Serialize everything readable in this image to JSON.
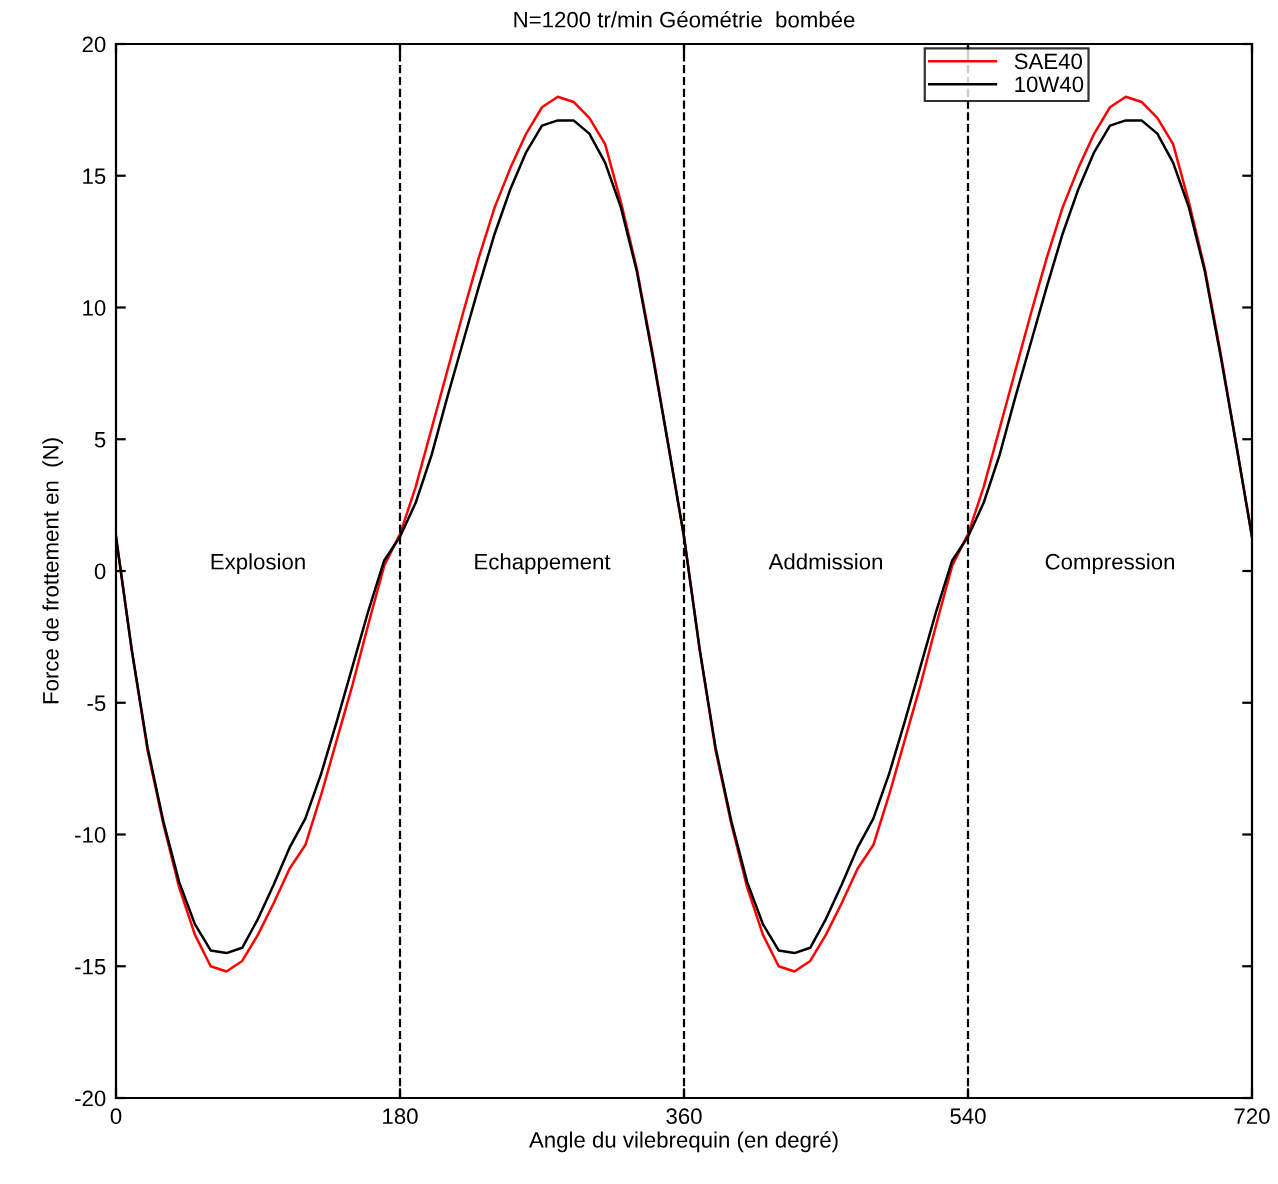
{
  "chart_data": {
    "type": "line",
    "title": "N=1200 tr/min Géométrie  bombée",
    "xlabel": "Angle du vilebrequin (en degré)",
    "ylabel": "Force de frottement en  (N)",
    "x": [
      0,
      10,
      20,
      30,
      40,
      50,
      60,
      70,
      80,
      90,
      100,
      110,
      120,
      130,
      140,
      150,
      160,
      170,
      180,
      190,
      200,
      210,
      220,
      230,
      240,
      250,
      260,
      270,
      280,
      290,
      300,
      310,
      320,
      330,
      340,
      350,
      360,
      370,
      380,
      390,
      400,
      410,
      420,
      430,
      440,
      450,
      460,
      470,
      480,
      490,
      500,
      510,
      520,
      530,
      540,
      550,
      560,
      570,
      580,
      590,
      600,
      610,
      620,
      630,
      640,
      650,
      660,
      670,
      680,
      690,
      700,
      710,
      720
    ],
    "series": [
      {
        "name": "SAE40",
        "color": "#ff0000",
        "values": [
          1.3,
          -3.0,
          -6.8,
          -9.6,
          -12.0,
          -13.8,
          -15.0,
          -15.2,
          -14.8,
          -13.8,
          -12.6,
          -11.3,
          -10.4,
          -8.5,
          -6.4,
          -4.3,
          -2.0,
          0.2,
          1.4,
          3.2,
          5.4,
          7.6,
          9.8,
          11.9,
          13.8,
          15.3,
          16.6,
          17.6,
          18.0,
          17.8,
          17.2,
          16.2,
          14.0,
          11.5,
          8.3,
          4.8,
          1.3,
          -3.0,
          -6.8,
          -9.6,
          -12.0,
          -13.8,
          -15.0,
          -15.2,
          -14.8,
          -13.8,
          -12.6,
          -11.3,
          -10.4,
          -8.5,
          -6.4,
          -4.3,
          -2.0,
          0.2,
          1.4,
          3.2,
          5.4,
          7.6,
          9.8,
          11.9,
          13.8,
          15.3,
          16.6,
          17.6,
          18.0,
          17.8,
          17.2,
          16.2,
          14.0,
          11.5,
          8.3,
          4.8,
          1.3
        ]
      },
      {
        "name": "10W40",
        "color": "#000000",
        "values": [
          1.3,
          -3.0,
          -6.7,
          -9.5,
          -11.8,
          -13.4,
          -14.4,
          -14.5,
          -14.3,
          -13.2,
          -11.9,
          -10.5,
          -9.4,
          -7.7,
          -5.7,
          -3.6,
          -1.5,
          0.4,
          1.3,
          2.6,
          4.4,
          6.6,
          8.7,
          10.8,
          12.8,
          14.5,
          15.9,
          16.9,
          17.1,
          17.1,
          16.6,
          15.5,
          13.8,
          11.4,
          8.2,
          4.8,
          1.3,
          -3.0,
          -6.7,
          -9.5,
          -11.8,
          -13.4,
          -14.4,
          -14.5,
          -14.3,
          -13.2,
          -11.9,
          -10.5,
          -9.4,
          -7.7,
          -5.7,
          -3.6,
          -1.5,
          0.4,
          1.3,
          2.6,
          4.4,
          6.6,
          8.7,
          10.8,
          12.8,
          14.5,
          15.9,
          16.9,
          17.1,
          17.1,
          16.6,
          15.5,
          13.8,
          11.4,
          8.2,
          4.8,
          1.3
        ]
      }
    ],
    "xlim": [
      0,
      720
    ],
    "xticks": [
      0,
      180,
      360,
      540,
      720
    ],
    "ylim": [
      -20,
      20
    ],
    "yticks": [
      -20,
      -15,
      -10,
      -5,
      0,
      5,
      10,
      15,
      20
    ],
    "ref_lines": [
      {
        "axis": "x",
        "value": 180,
        "color": "#000000",
        "line_style": "dashed"
      },
      {
        "axis": "x",
        "value": 360,
        "color": "#000000",
        "line_style": "dashed"
      },
      {
        "axis": "x",
        "value": 540,
        "color": "#000000",
        "line_style": "dashed"
      }
    ],
    "annotations": [
      "Explosion",
      "Echappement",
      "Addmission",
      "Compression"
    ],
    "grid": false,
    "legend": "top right",
    "marker": "none",
    "line_style": "solid"
  }
}
